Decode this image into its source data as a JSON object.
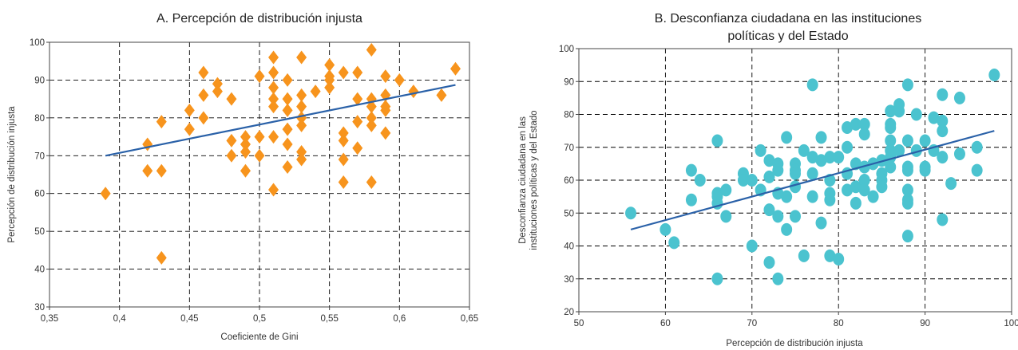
{
  "chart_data": [
    {
      "type": "scatter",
      "title": "A. Percepción de distribución injusta",
      "xlabel": "Coeficiente de Gini",
      "ylabel": "Percepción de distribución injusta",
      "xlim": [
        0.35,
        0.65
      ],
      "ylim": [
        30,
        100
      ],
      "xticks": [
        "0,35",
        "0,4",
        "0,45",
        "0,5",
        "0,55",
        "0,6",
        "0,65"
      ],
      "xtick_values": [
        0.35,
        0.4,
        0.45,
        0.5,
        0.55,
        0.6,
        0.65
      ],
      "yticks": [
        "30",
        "40",
        "50",
        "60",
        "70",
        "80",
        "90",
        "100"
      ],
      "ytick_values": [
        30,
        40,
        50,
        60,
        70,
        80,
        90,
        100
      ],
      "grid": true,
      "marker": "diamond",
      "color": "#f7941d",
      "trend_color": "#2a61a8",
      "trend": [
        [
          0.39,
          70
        ],
        [
          0.64,
          88.7
        ]
      ],
      "points": [
        [
          0.39,
          60
        ],
        [
          0.42,
          73
        ],
        [
          0.42,
          66
        ],
        [
          0.43,
          66
        ],
        [
          0.43,
          79
        ],
        [
          0.43,
          43
        ],
        [
          0.45,
          82
        ],
        [
          0.45,
          77
        ],
        [
          0.46,
          92
        ],
        [
          0.46,
          86
        ],
        [
          0.46,
          80
        ],
        [
          0.47,
          89
        ],
        [
          0.47,
          87
        ],
        [
          0.48,
          85
        ],
        [
          0.48,
          74
        ],
        [
          0.48,
          70
        ],
        [
          0.49,
          75
        ],
        [
          0.49,
          73
        ],
        [
          0.49,
          71
        ],
        [
          0.49,
          66
        ],
        [
          0.5,
          91
        ],
        [
          0.5,
          75
        ],
        [
          0.5,
          70
        ],
        [
          0.51,
          96
        ],
        [
          0.51,
          92
        ],
        [
          0.51,
          88
        ],
        [
          0.51,
          85
        ],
        [
          0.51,
          83
        ],
        [
          0.51,
          75
        ],
        [
          0.51,
          61
        ],
        [
          0.52,
          90
        ],
        [
          0.52,
          85
        ],
        [
          0.52,
          82
        ],
        [
          0.52,
          77
        ],
        [
          0.52,
          73
        ],
        [
          0.52,
          67
        ],
        [
          0.53,
          96
        ],
        [
          0.53,
          86
        ],
        [
          0.53,
          83
        ],
        [
          0.53,
          80
        ],
        [
          0.53,
          78
        ],
        [
          0.53,
          71
        ],
        [
          0.53,
          69
        ],
        [
          0.54,
          87
        ],
        [
          0.55,
          94
        ],
        [
          0.55,
          91
        ],
        [
          0.55,
          90
        ],
        [
          0.55,
          88
        ],
        [
          0.56,
          92
        ],
        [
          0.56,
          76
        ],
        [
          0.56,
          74
        ],
        [
          0.56,
          69
        ],
        [
          0.56,
          63
        ],
        [
          0.57,
          92
        ],
        [
          0.57,
          85
        ],
        [
          0.57,
          79
        ],
        [
          0.57,
          72
        ],
        [
          0.58,
          98
        ],
        [
          0.58,
          85
        ],
        [
          0.58,
          83
        ],
        [
          0.58,
          80
        ],
        [
          0.58,
          78
        ],
        [
          0.58,
          63
        ],
        [
          0.59,
          91
        ],
        [
          0.59,
          86
        ],
        [
          0.59,
          83
        ],
        [
          0.59,
          82
        ],
        [
          0.59,
          76
        ],
        [
          0.6,
          90
        ],
        [
          0.61,
          87
        ],
        [
          0.63,
          86
        ],
        [
          0.64,
          93
        ]
      ]
    },
    {
      "type": "scatter",
      "title_lines": [
        "B. Desconfianza ciudadana en las instituciones",
        "políticas y del Estado"
      ],
      "xlabel": "Percepción de distribución injusta",
      "ylabel_lines": [
        "Desconfianza ciudadana en las",
        "instituciones políticas y del Estado"
      ],
      "xlim": [
        50,
        100
      ],
      "ylim": [
        20,
        100
      ],
      "xticks": [
        "50",
        "60",
        "70",
        "80",
        "90",
        "100"
      ],
      "xtick_values": [
        50,
        60,
        70,
        80,
        90,
        100
      ],
      "yticks": [
        "20",
        "30",
        "40",
        "50",
        "60",
        "70",
        "80",
        "90",
        "100"
      ],
      "ytick_values": [
        20,
        30,
        40,
        50,
        60,
        70,
        80,
        90,
        100
      ],
      "grid": true,
      "marker": "circle",
      "color": "#4bc3cf",
      "trend_color": "#2a61a8",
      "trend": [
        [
          56,
          45
        ],
        [
          98,
          75
        ]
      ],
      "points": [
        [
          56,
          50
        ],
        [
          60,
          45
        ],
        [
          61,
          41
        ],
        [
          63,
          63
        ],
        [
          63,
          54
        ],
        [
          64,
          60
        ],
        [
          66,
          72
        ],
        [
          66,
          56
        ],
        [
          66,
          55
        ],
        [
          66,
          53
        ],
        [
          66,
          30
        ],
        [
          67,
          57
        ],
        [
          67,
          49
        ],
        [
          69,
          62
        ],
        [
          69,
          60
        ],
        [
          70,
          60
        ],
        [
          70,
          40
        ],
        [
          71,
          69
        ],
        [
          71,
          57
        ],
        [
          72,
          66
        ],
        [
          72,
          61
        ],
        [
          72,
          51
        ],
        [
          72,
          35
        ],
        [
          73,
          65
        ],
        [
          73,
          63
        ],
        [
          73,
          56
        ],
        [
          73,
          49
        ],
        [
          73,
          30
        ],
        [
          74,
          73
        ],
        [
          74,
          55
        ],
        [
          74,
          45
        ],
        [
          75,
          65
        ],
        [
          75,
          63
        ],
        [
          75,
          62
        ],
        [
          75,
          58
        ],
        [
          75,
          49
        ],
        [
          76,
          69
        ],
        [
          76,
          37
        ],
        [
          77,
          89
        ],
        [
          77,
          67
        ],
        [
          77,
          62
        ],
        [
          77,
          55
        ],
        [
          78,
          73
        ],
        [
          78,
          66
        ],
        [
          78,
          47
        ],
        [
          79,
          67
        ],
        [
          79,
          60
        ],
        [
          79,
          56
        ],
        [
          79,
          54
        ],
        [
          79,
          37
        ],
        [
          80,
          67
        ],
        [
          80,
          36
        ],
        [
          81,
          76
        ],
        [
          81,
          70
        ],
        [
          81,
          62
        ],
        [
          81,
          57
        ],
        [
          82,
          77
        ],
        [
          82,
          65
        ],
        [
          82,
          58
        ],
        [
          82,
          53
        ],
        [
          83,
          77
        ],
        [
          83,
          74
        ],
        [
          83,
          64
        ],
        [
          83,
          60
        ],
        [
          83,
          57
        ],
        [
          84,
          65
        ],
        [
          84,
          55
        ],
        [
          85,
          66
        ],
        [
          85,
          62
        ],
        [
          85,
          60
        ],
        [
          85,
          58
        ],
        [
          86,
          81
        ],
        [
          86,
          77
        ],
        [
          86,
          76
        ],
        [
          86,
          72
        ],
        [
          86,
          69
        ],
        [
          86,
          67
        ],
        [
          86,
          64
        ],
        [
          87,
          83
        ],
        [
          87,
          81
        ],
        [
          87,
          69
        ],
        [
          88,
          89
        ],
        [
          88,
          72
        ],
        [
          88,
          64
        ],
        [
          88,
          63
        ],
        [
          88,
          57
        ],
        [
          88,
          54
        ],
        [
          88,
          53
        ],
        [
          88,
          43
        ],
        [
          89,
          80
        ],
        [
          89,
          69
        ],
        [
          90,
          72
        ],
        [
          90,
          64
        ],
        [
          90,
          63
        ],
        [
          91,
          79
        ],
        [
          91,
          69
        ],
        [
          92,
          86
        ],
        [
          92,
          78
        ],
        [
          92,
          75
        ],
        [
          92,
          67
        ],
        [
          92,
          48
        ],
        [
          93,
          59
        ],
        [
          94,
          85
        ],
        [
          94,
          68
        ],
        [
          96,
          70
        ],
        [
          96,
          63
        ],
        [
          98,
          92
        ]
      ]
    }
  ]
}
